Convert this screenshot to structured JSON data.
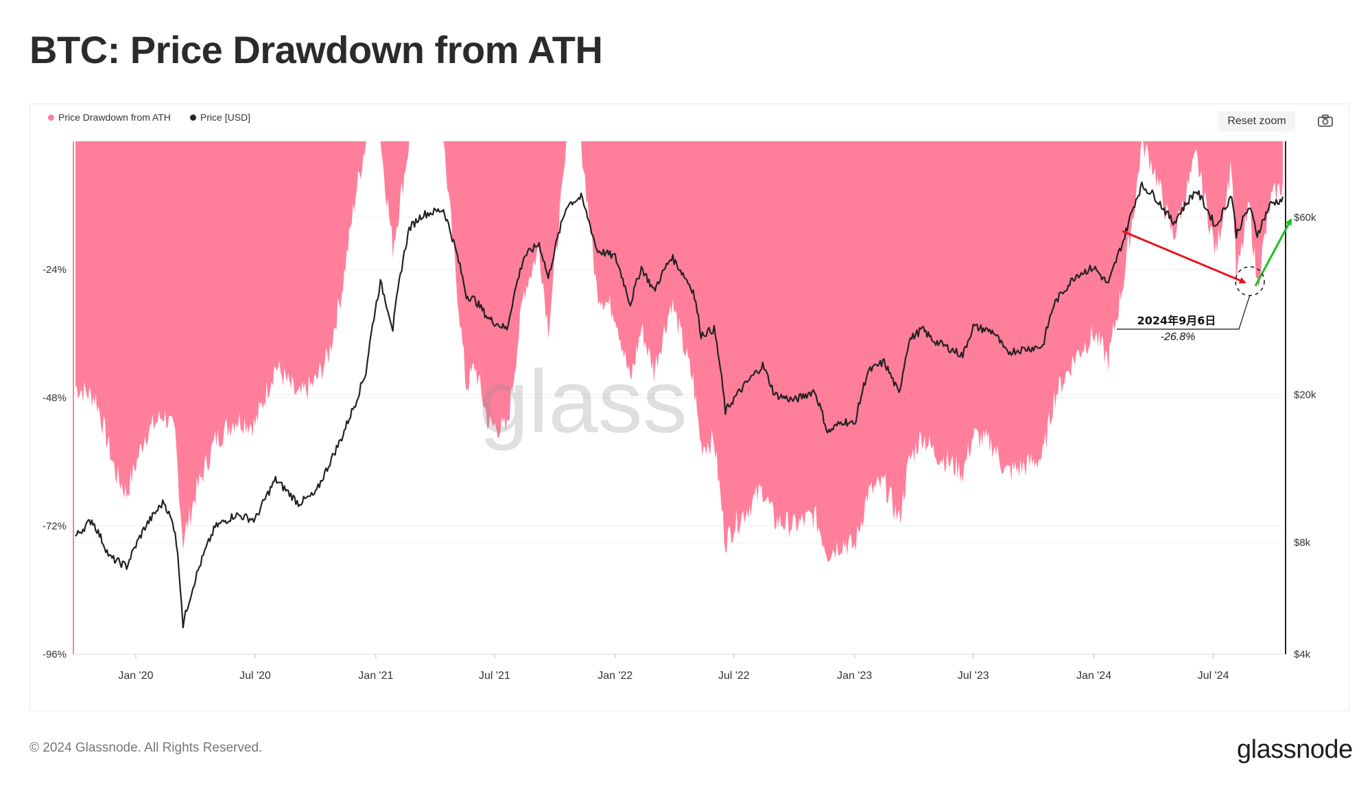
{
  "header": {
    "title": "BTC: Price Drawdown from ATH"
  },
  "legend": {
    "items": [
      {
        "label": "Price Drawdown from ATH",
        "color": "#ff7f9b"
      },
      {
        "label": "Price [USD]",
        "color": "#222222"
      }
    ]
  },
  "toolbar": {
    "reset_zoom_label": "Reset zoom",
    "camera_icon": "camera-icon"
  },
  "watermark": {
    "text": "glass"
  },
  "footer": {
    "copyright": "© 2024 Glassnode. All Rights Reserved.",
    "brand": "glassnode"
  },
  "annotation": {
    "date_label": "2024年9月6日",
    "value_label": "-26.8%",
    "arrow_down_color": "#e8141b",
    "arrow_up_color": "#19c11c"
  },
  "chart_data": {
    "type": "area",
    "xlim": [
      "2019-10-01",
      "2024-10-15"
    ],
    "x_ticks": [
      "Jan '20",
      "Jul '20",
      "Jan '21",
      "Jul '21",
      "Jan '22",
      "Jul '22",
      "Jan '23",
      "Jul '23",
      "Jan '24",
      "Jul '24"
    ],
    "y_left": {
      "label": "",
      "ticks": [
        "-24%",
        "-48%",
        "-72%",
        "-96%"
      ],
      "tick_values": [
        -24,
        -48,
        -72,
        -96
      ],
      "range": [
        0,
        -96
      ]
    },
    "y_right": {
      "label": "",
      "scale": "log",
      "ticks": [
        "$60k",
        "$20k",
        "$8k",
        "$4k"
      ],
      "tick_values": [
        60000,
        20000,
        8000,
        4000
      ]
    },
    "grid": true,
    "legend_position": "top-left",
    "series": [
      {
        "name": "Price Drawdown from ATH",
        "axis": "left",
        "color": "#ff7f9b",
        "points": [
          [
            "2019-10-01",
            -46
          ],
          [
            "2019-11-01",
            -48
          ],
          [
            "2019-12-01",
            -62
          ],
          [
            "2019-12-18",
            -66
          ],
          [
            "2020-01-15",
            -55
          ],
          [
            "2020-02-13",
            -51
          ],
          [
            "2020-03-01",
            -55
          ],
          [
            "2020-03-13",
            -75
          ],
          [
            "2020-04-01",
            -66
          ],
          [
            "2020-05-01",
            -56
          ],
          [
            "2020-06-01",
            -52
          ],
          [
            "2020-07-01",
            -53
          ],
          [
            "2020-08-01",
            -42
          ],
          [
            "2020-09-05",
            -48
          ],
          [
            "2020-10-01",
            -45
          ],
          [
            "2020-10-21",
            -40
          ],
          [
            "2020-11-10",
            -28
          ],
          [
            "2020-12-01",
            -10
          ],
          [
            "2020-12-17",
            0
          ],
          [
            "2021-01-08",
            0
          ],
          [
            "2021-01-27",
            -20
          ],
          [
            "2021-02-21",
            0
          ],
          [
            "2021-03-13",
            0
          ],
          [
            "2021-04-14",
            0
          ],
          [
            "2021-05-19",
            -46
          ],
          [
            "2021-06-01",
            -42
          ],
          [
            "2021-06-22",
            -53
          ],
          [
            "2021-07-20",
            -54
          ],
          [
            "2021-08-15",
            -28
          ],
          [
            "2021-09-07",
            -20
          ],
          [
            "2021-09-21",
            -35
          ],
          [
            "2021-10-20",
            0
          ],
          [
            "2021-11-10",
            0
          ],
          [
            "2021-12-04",
            -28
          ],
          [
            "2022-01-01",
            -32
          ],
          [
            "2022-01-24",
            -45
          ],
          [
            "2022-02-10",
            -35
          ],
          [
            "2022-03-01",
            -43
          ],
          [
            "2022-03-28",
            -30
          ],
          [
            "2022-04-30",
            -45
          ],
          [
            "2022-05-12",
            -57
          ],
          [
            "2022-06-01",
            -56
          ],
          [
            "2022-06-18",
            -75
          ],
          [
            "2022-07-01",
            -72
          ],
          [
            "2022-08-14",
            -65
          ],
          [
            "2022-09-01",
            -71
          ],
          [
            "2022-10-01",
            -72
          ],
          [
            "2022-11-01",
            -70
          ],
          [
            "2022-11-21",
            -77
          ],
          [
            "2022-12-15",
            -75
          ],
          [
            "2023-01-01",
            -76
          ],
          [
            "2023-01-21",
            -66
          ],
          [
            "2023-02-15",
            -64
          ],
          [
            "2023-03-10",
            -71
          ],
          [
            "2023-03-25",
            -60
          ],
          [
            "2023-04-14",
            -55
          ],
          [
            "2023-05-01",
            -58
          ],
          [
            "2023-06-15",
            -62
          ],
          [
            "2023-07-01",
            -55
          ],
          [
            "2023-08-01",
            -57
          ],
          [
            "2023-08-20",
            -62
          ],
          [
            "2023-09-15",
            -61
          ],
          [
            "2023-10-15",
            -59
          ],
          [
            "2023-11-01",
            -48
          ],
          [
            "2023-12-05",
            -40
          ],
          [
            "2024-01-01",
            -36
          ],
          [
            "2024-01-23",
            -41
          ],
          [
            "2024-02-15",
            -26
          ],
          [
            "2024-03-05",
            -10
          ],
          [
            "2024-03-14",
            0
          ],
          [
            "2024-04-01",
            -5
          ],
          [
            "2024-05-01",
            -18
          ],
          [
            "2024-06-05",
            -3
          ],
          [
            "2024-07-05",
            -21
          ],
          [
            "2024-07-29",
            -4
          ],
          [
            "2024-08-05",
            -26
          ],
          [
            "2024-08-25",
            -12
          ],
          [
            "2024-09-06",
            -26.8
          ],
          [
            "2024-09-27",
            -11
          ],
          [
            "2024-10-15",
            -8
          ]
        ]
      },
      {
        "name": "Price [USD]",
        "axis": "right",
        "color": "#222222",
        "points": [
          [
            "2019-10-01",
            8300
          ],
          [
            "2019-10-26",
            9200
          ],
          [
            "2019-11-22",
            7300
          ],
          [
            "2019-12-18",
            6900
          ],
          [
            "2020-01-15",
            8800
          ],
          [
            "2020-02-13",
            10300
          ],
          [
            "2020-03-01",
            8600
          ],
          [
            "2020-03-13",
            4800
          ],
          [
            "2020-04-01",
            6400
          ],
          [
            "2020-05-01",
            8800
          ],
          [
            "2020-06-01",
            9500
          ],
          [
            "2020-07-01",
            9200
          ],
          [
            "2020-08-01",
            11800
          ],
          [
            "2020-09-05",
            10200
          ],
          [
            "2020-10-01",
            10800
          ],
          [
            "2020-10-21",
            12900
          ],
          [
            "2020-11-10",
            15300
          ],
          [
            "2020-12-01",
            19000
          ],
          [
            "2020-12-17",
            23000
          ],
          [
            "2021-01-08",
            40000
          ],
          [
            "2021-01-27",
            30000
          ],
          [
            "2021-02-21",
            56000
          ],
          [
            "2021-03-13",
            61000
          ],
          [
            "2021-04-14",
            63000
          ],
          [
            "2021-05-19",
            37000
          ],
          [
            "2021-06-01",
            36000
          ],
          [
            "2021-06-22",
            32000
          ],
          [
            "2021-07-20",
            30000
          ],
          [
            "2021-08-15",
            47000
          ],
          [
            "2021-09-07",
            51000
          ],
          [
            "2021-09-21",
            41000
          ],
          [
            "2021-10-20",
            65000
          ],
          [
            "2021-11-10",
            68000
          ],
          [
            "2021-12-04",
            49000
          ],
          [
            "2022-01-01",
            47000
          ],
          [
            "2022-01-24",
            35000
          ],
          [
            "2022-02-10",
            44000
          ],
          [
            "2022-03-01",
            38000
          ],
          [
            "2022-03-28",
            47000
          ],
          [
            "2022-04-30",
            38000
          ],
          [
            "2022-05-12",
            29000
          ],
          [
            "2022-06-01",
            30000
          ],
          [
            "2022-06-18",
            18000
          ],
          [
            "2022-07-01",
            19500
          ],
          [
            "2022-08-14",
            24000
          ],
          [
            "2022-09-01",
            20000
          ],
          [
            "2022-10-01",
            19300
          ],
          [
            "2022-11-01",
            20500
          ],
          [
            "2022-11-21",
            15800
          ],
          [
            "2022-12-15",
            17000
          ],
          [
            "2023-01-01",
            16600
          ],
          [
            "2023-01-21",
            23000
          ],
          [
            "2023-02-15",
            24500
          ],
          [
            "2023-03-10",
            20000
          ],
          [
            "2023-03-25",
            28000
          ],
          [
            "2023-04-14",
            30000
          ],
          [
            "2023-05-01",
            28000
          ],
          [
            "2023-06-15",
            25500
          ],
          [
            "2023-07-01",
            30500
          ],
          [
            "2023-08-01",
            29500
          ],
          [
            "2023-08-20",
            26000
          ],
          [
            "2023-09-15",
            26500
          ],
          [
            "2023-10-15",
            27000
          ],
          [
            "2023-11-01",
            35000
          ],
          [
            "2023-12-05",
            42000
          ],
          [
            "2024-01-01",
            44000
          ],
          [
            "2024-01-23",
            39500
          ],
          [
            "2024-02-15",
            52000
          ],
          [
            "2024-03-05",
            67000
          ],
          [
            "2024-03-14",
            73000
          ],
          [
            "2024-04-01",
            69000
          ],
          [
            "2024-05-01",
            58000
          ],
          [
            "2024-06-05",
            71000
          ],
          [
            "2024-07-05",
            56500
          ],
          [
            "2024-07-29",
            69000
          ],
          [
            "2024-08-05",
            54000
          ],
          [
            "2024-08-25",
            64000
          ],
          [
            "2024-09-06",
            53900
          ],
          [
            "2024-09-27",
            65500
          ],
          [
            "2024-10-15",
            67000
          ]
        ]
      }
    ]
  }
}
